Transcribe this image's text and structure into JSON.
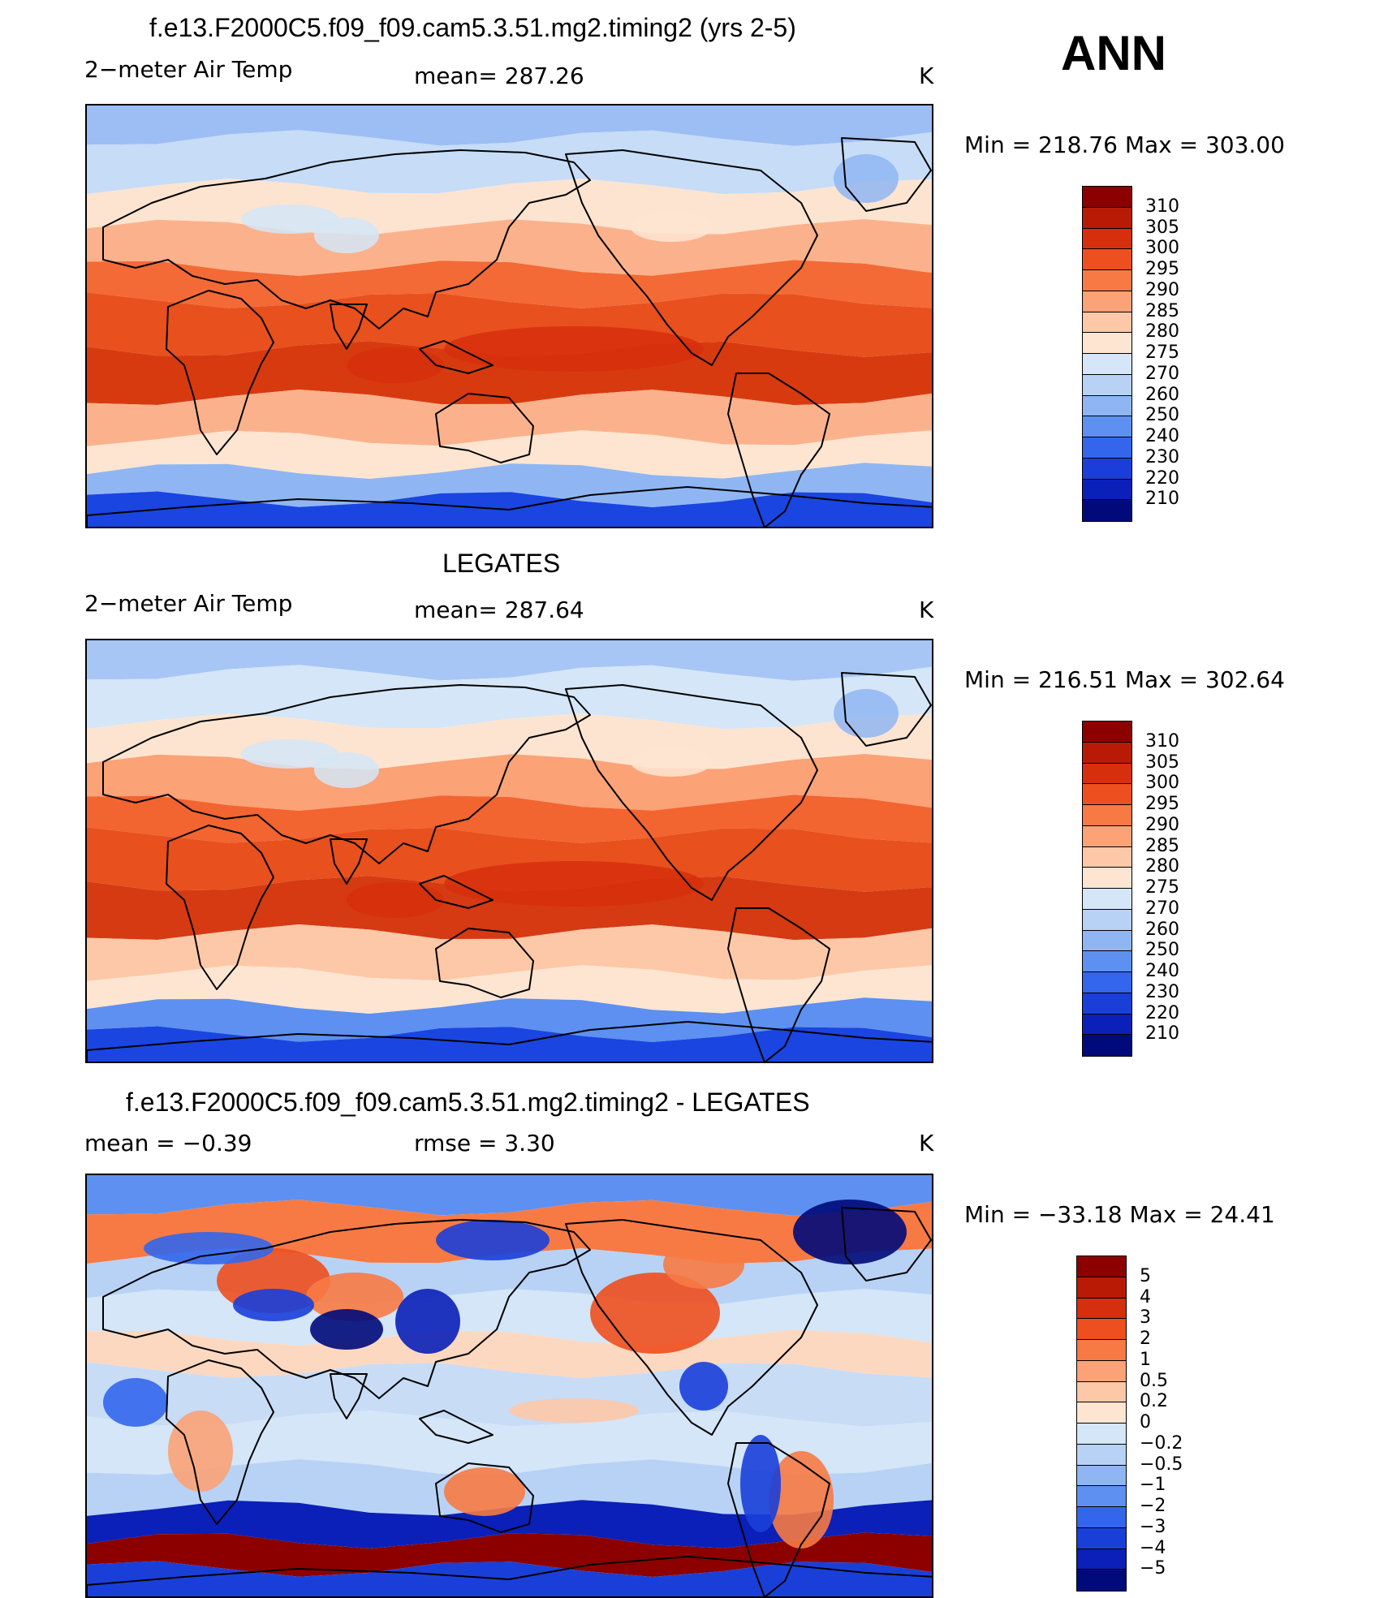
{
  "header": {
    "season": "ANN",
    "units": "K"
  },
  "panels": [
    {
      "id": "model",
      "title": "f.e13.F2000C5.f09_f09.cam5.3.51.mg2.timing2 (yrs 2-5)",
      "left_text": "2−meter Air Temp",
      "center_text": "mean=  287.26",
      "right_text": "K",
      "minmax": "Min  =  218.76  Max  =  303.00",
      "colorbar": {
        "labels": [
          "310",
          "305",
          "300",
          "295",
          "290",
          "285",
          "280",
          "275",
          "270",
          "260",
          "250",
          "240",
          "230",
          "220",
          "210"
        ],
        "colors": [
          "#8c0000",
          "#b81a06",
          "#d62f0d",
          "#ee4f1e",
          "#f77a44",
          "#fba276",
          "#fdc8a8",
          "#fee5d2",
          "#d4e6f7",
          "#b7d2f5",
          "#8fb6f3",
          "#5d90f0",
          "#3366ec",
          "#1a3fd9",
          "#0a20b8",
          "#000a7a"
        ]
      },
      "zones": [
        {
          "band": "arctic",
          "color": "#9dbdf5"
        },
        {
          "band": "north-cold",
          "color": "#c6dcf7"
        },
        {
          "band": "north-cool",
          "color": "#fde4d0"
        },
        {
          "band": "north-mild",
          "color": "#fbb28c"
        },
        {
          "band": "subtropic",
          "color": "#f36a36"
        },
        {
          "band": "tropic",
          "color": "#e8501e"
        },
        {
          "band": "warm-pool",
          "color": "#d83a10"
        },
        {
          "band": "south-mild",
          "color": "#fbb28c"
        },
        {
          "band": "south-cool",
          "color": "#fee5d2"
        },
        {
          "band": "south-cold",
          "color": "#8fb6f3"
        },
        {
          "band": "antarctic",
          "color": "#1a45e0"
        }
      ]
    },
    {
      "id": "obs",
      "title": "LEGATES",
      "left_text": "2−meter Air Temp",
      "center_text": "mean=  287.64",
      "right_text": "K",
      "minmax": "Min  =  216.51  Max  =  302.64",
      "colorbar": {
        "labels": [
          "310",
          "305",
          "300",
          "295",
          "290",
          "285",
          "280",
          "275",
          "270",
          "260",
          "250",
          "240",
          "230",
          "220",
          "210"
        ],
        "colors": [
          "#8c0000",
          "#b81a06",
          "#d62f0d",
          "#ee4f1e",
          "#f77a44",
          "#fba276",
          "#fdc8a8",
          "#fee5d2",
          "#d4e6f7",
          "#b7d2f5",
          "#8fb6f3",
          "#5d90f0",
          "#3366ec",
          "#1a3fd9",
          "#0a20b8",
          "#000a7a"
        ]
      },
      "zones": [
        {
          "band": "arctic",
          "color": "#a7c6f6"
        },
        {
          "band": "north-cold",
          "color": "#d4e6f7"
        },
        {
          "band": "north-cool",
          "color": "#fde4d0"
        },
        {
          "band": "north-mild",
          "color": "#fba276"
        },
        {
          "band": "subtropic",
          "color": "#f26430"
        },
        {
          "band": "tropic",
          "color": "#e8501e"
        },
        {
          "band": "warm-pool",
          "color": "#d53a12"
        },
        {
          "band": "south-mild",
          "color": "#fdc8a8"
        },
        {
          "band": "south-cool",
          "color": "#fee5d2"
        },
        {
          "band": "south-cold",
          "color": "#5d90f0"
        },
        {
          "band": "antarctic",
          "color": "#1a45e0"
        }
      ]
    },
    {
      "id": "diff",
      "title": "f.e13.F2000C5.f09_f09.cam5.3.51.mg2.timing2 - LEGATES",
      "left_text": "mean  =     −0.39",
      "center_text": "rmse  =      3.30",
      "right_text": "K",
      "minmax": "Min  =  −33.18  Max  =    24.41",
      "colorbar": {
        "labels": [
          "5",
          "4",
          "3",
          "2",
          "1",
          "0.5",
          "0.2",
          "0",
          "−0.2",
          "−0.5",
          "−1",
          "−2",
          "−3",
          "−4",
          "−5"
        ],
        "colors": [
          "#8c0000",
          "#b81a06",
          "#d62f0d",
          "#ee4f1e",
          "#f77a44",
          "#fba276",
          "#fdc8a8",
          "#fee5d2",
          "#d4e6f7",
          "#b7d2f5",
          "#8fb6f3",
          "#5d90f0",
          "#3366ec",
          "#1a3fd9",
          "#0a20b8",
          "#000a7a"
        ]
      },
      "zones": [
        {
          "band": "arctic",
          "color": "#5d90f0"
        },
        {
          "band": "north-cold",
          "color": "#f77a44"
        },
        {
          "band": "north-cool",
          "color": "#b7d2f5"
        },
        {
          "band": "north-mild",
          "color": "#d4e6f7"
        },
        {
          "band": "subtropic",
          "color": "#fdd8c0"
        },
        {
          "band": "tropic",
          "color": "#c8dcf6"
        },
        {
          "band": "warm-pool",
          "color": "#d4e6f7"
        },
        {
          "band": "south-mild",
          "color": "#b7d2f5"
        },
        {
          "band": "south-cool",
          "color": "#0a20b8"
        },
        {
          "band": "south-cold",
          "color": "#8c0000"
        },
        {
          "band": "antarctic",
          "color": "#1a3fd9"
        }
      ]
    }
  ]
}
